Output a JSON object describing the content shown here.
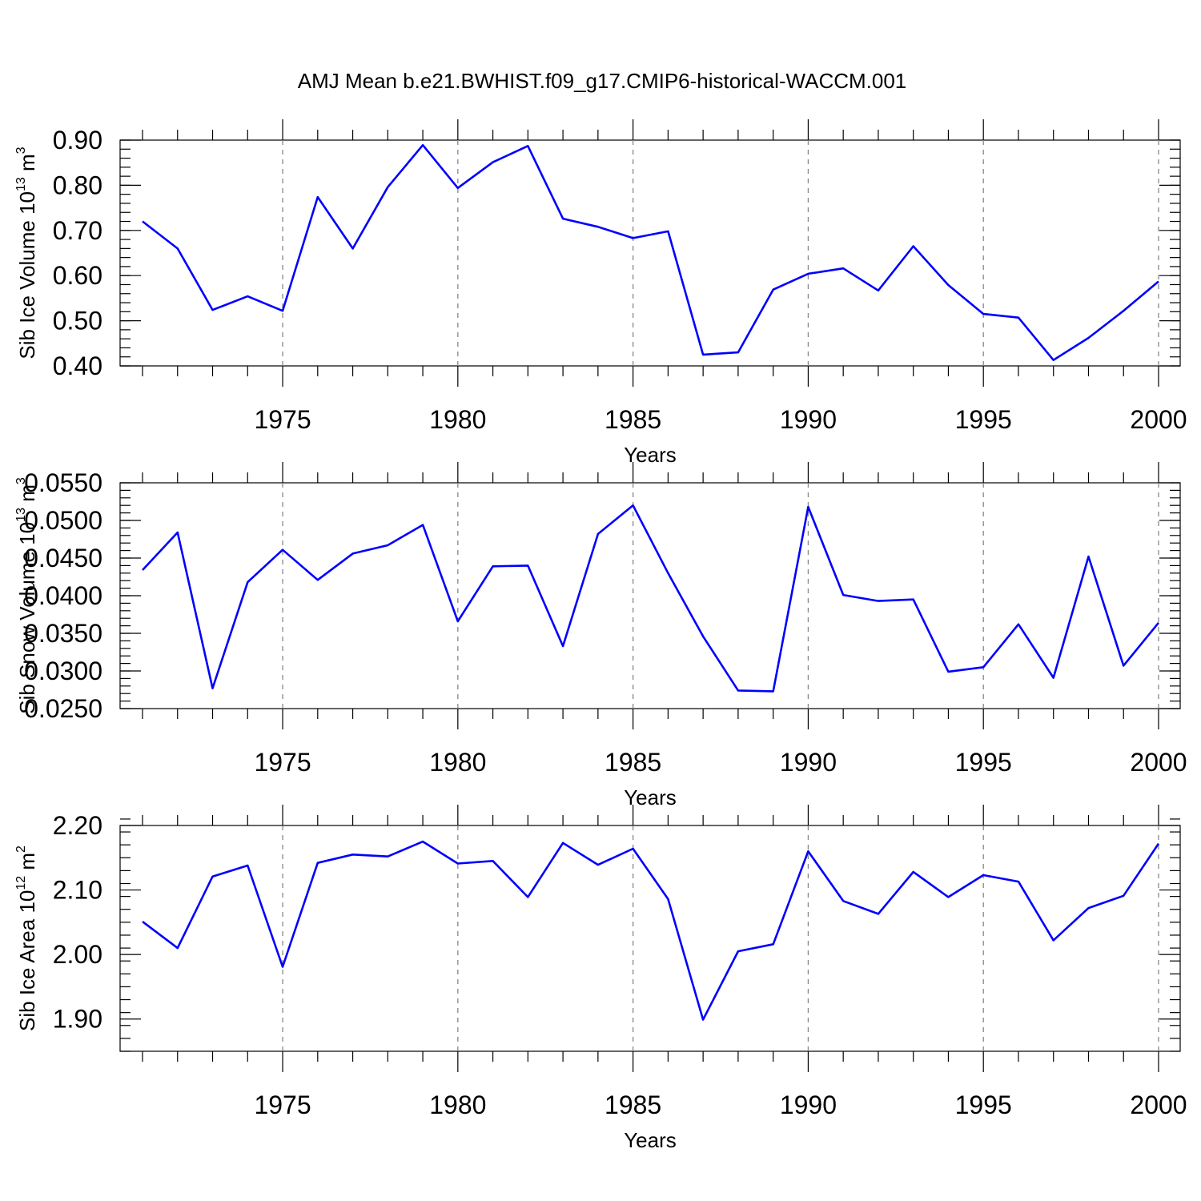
{
  "title": "AMJ Mean b.e21.BWHIST.f09_g17.CMIP6-historical-WACCM.001",
  "chart_data": [
    {
      "type": "line",
      "ylabel_parts": {
        "pre": "Sib Ice Volume 10",
        "sup": "13",
        "mid": " m",
        "sup2": "3"
      },
      "xlabel": "Years",
      "x": [
        1971,
        1972,
        1973,
        1974,
        1975,
        1976,
        1977,
        1978,
        1979,
        1980,
        1981,
        1982,
        1983,
        1984,
        1985,
        1986,
        1987,
        1988,
        1989,
        1990,
        1991,
        1992,
        1993,
        1994,
        1995,
        1996,
        1997,
        1998,
        1999,
        2000
      ],
      "values": [
        0.72,
        0.66,
        0.524,
        0.554,
        0.522,
        0.774,
        0.66,
        0.796,
        0.889,
        0.794,
        0.851,
        0.887,
        0.726,
        0.708,
        0.683,
        0.698,
        0.425,
        0.43,
        0.569,
        0.604,
        0.616,
        0.567,
        0.665,
        0.579,
        0.515,
        0.507,
        0.413,
        0.462,
        0.522,
        0.587
      ],
      "xlim": [
        1971,
        2000
      ],
      "ylim": [
        0.4,
        0.9
      ],
      "yticks": [
        "0.40",
        "0.50",
        "0.60",
        "0.70",
        "0.80",
        "0.90"
      ],
      "xticks": [
        "1975",
        "1980",
        "1985",
        "1990",
        "1995",
        "2000"
      ],
      "ytop": 0.9,
      "ybottom": 0.4,
      "ymajor": 0.1,
      "yminor": 0.02,
      "color": "#0000ff"
    },
    {
      "type": "line",
      "ylabel_parts": {
        "pre": "Sib Snow Volume 10",
        "sup": "13",
        "mid": " m",
        "sup2": "3"
      },
      "xlabel": "Years",
      "x": [
        1971,
        1972,
        1973,
        1974,
        1975,
        1976,
        1977,
        1978,
        1979,
        1980,
        1981,
        1982,
        1983,
        1984,
        1985,
        1986,
        1987,
        1988,
        1989,
        1990,
        1991,
        1992,
        1993,
        1994,
        1995,
        1996,
        1997,
        1998,
        1999,
        2000
      ],
      "values": [
        0.0434,
        0.0484,
        0.0277,
        0.0418,
        0.0461,
        0.0421,
        0.0456,
        0.0467,
        0.0494,
        0.0366,
        0.0439,
        0.044,
        0.0333,
        0.0482,
        0.052,
        0.043,
        0.0346,
        0.0274,
        0.0273,
        0.0518,
        0.0401,
        0.0393,
        0.0395,
        0.0299,
        0.0305,
        0.0362,
        0.0291,
        0.0452,
        0.0307,
        0.0364
      ],
      "xlim": [
        1971,
        2000
      ],
      "ylim": [
        0.025,
        0.055
      ],
      "yticks": [
        "0.0250",
        "0.0300",
        "0.0350",
        "0.0400",
        "0.0450",
        "0.0500",
        "0.0550"
      ],
      "xticks": [
        "1975",
        "1980",
        "1985",
        "1990",
        "1995",
        "2000"
      ],
      "ytop": 0.055,
      "ybottom": 0.025,
      "ymajor": 0.005,
      "yminor": 0.001,
      "color": "#0000ff"
    },
    {
      "type": "line",
      "ylabel_parts": {
        "pre": "Sib Ice Area 10",
        "sup": "12",
        "mid": " m",
        "sup2": "2"
      },
      "xlabel": "Years",
      "x": [
        1971,
        1972,
        1973,
        1974,
        1975,
        1976,
        1977,
        1978,
        1979,
        1980,
        1981,
        1982,
        1983,
        1984,
        1985,
        1986,
        1987,
        1988,
        1989,
        1990,
        1991,
        1992,
        1993,
        1994,
        1995,
        1996,
        1997,
        1998,
        1999,
        2000
      ],
      "values": [
        2.051,
        2.01,
        2.121,
        2.138,
        1.981,
        2.142,
        2.155,
        2.152,
        2.175,
        2.141,
        2.145,
        2.089,
        2.173,
        2.139,
        2.164,
        2.086,
        1.899,
        2.005,
        2.016,
        2.16,
        2.083,
        2.063,
        2.128,
        2.089,
        2.123,
        2.113,
        2.022,
        2.072,
        2.091,
        2.172
      ],
      "xlim": [
        1971,
        2000
      ],
      "ylim": [
        1.85,
        2.2
      ],
      "yticks": [
        "1.90",
        "2.00",
        "2.10",
        "2.20"
      ],
      "xticks": [
        "1975",
        "1980",
        "1985",
        "1990",
        "1995",
        "2000"
      ],
      "ytop": 2.2,
      "ybottom": 1.85,
      "ymajor": 0.1,
      "yminor": 0.02,
      "color": "#0000ff"
    }
  ]
}
